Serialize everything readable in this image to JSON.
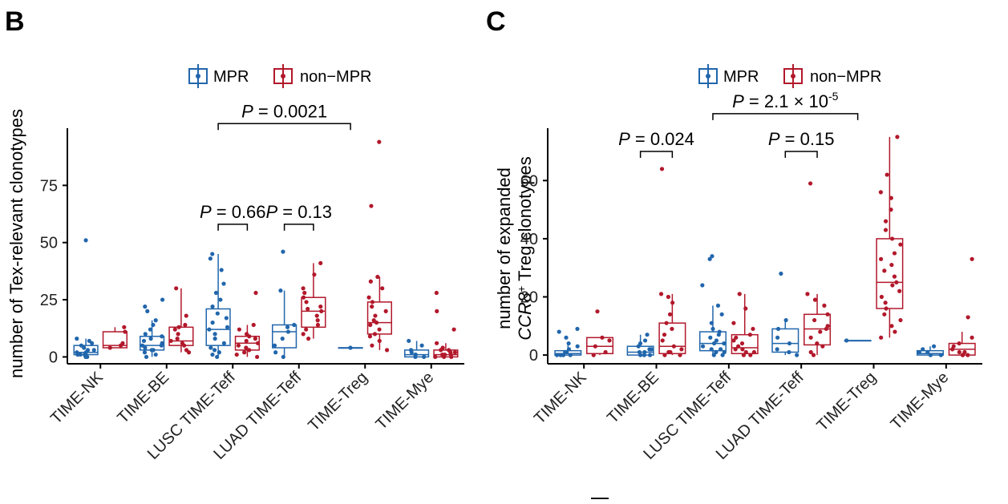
{
  "colors": {
    "mpr": "#2166ac",
    "non_mpr": "#b2182b",
    "axis": "#000000"
  },
  "legend": {
    "mpr": "MPR",
    "non_mpr": "non−MPR"
  },
  "chart_data": [
    {
      "id": "B",
      "panel_label": "B",
      "type": "box",
      "title": "",
      "xlabel": "",
      "ylabel": "number of Tex-relevant clonotypes",
      "ylim": [
        -3,
        100
      ],
      "yticks": [
        0,
        25,
        50,
        75
      ],
      "categories": [
        "TIME-NK",
        "TIME-BE",
        "LUSC TIME-Teff",
        "LUAD TIME-Teff",
        "TIME-Treg",
        "TIME-Mye"
      ],
      "series": [
        {
          "name": "MPR",
          "boxes": [
            {
              "q1": 1,
              "median": 2,
              "q3": 5,
              "whisker_low": 0,
              "whisker_high": 8,
              "points": [
                0,
                0,
                1,
                1,
                1,
                2,
                2,
                3,
                3,
                4,
                5,
                6,
                7,
                8,
                51
              ]
            },
            {
              "q1": 3,
              "median": 5,
              "q3": 9,
              "whisker_low": 0,
              "whisker_high": 16,
              "points": [
                0,
                1,
                2,
                3,
                3,
                4,
                5,
                5,
                6,
                7,
                8,
                9,
                10,
                12,
                14,
                16,
                20,
                22,
                25
              ]
            },
            {
              "q1": 5,
              "median": 12,
              "q3": 21,
              "whisker_low": 0,
              "whisker_high": 45,
              "points": [
                0,
                1,
                2,
                3,
                4,
                6,
                8,
                10,
                12,
                13,
                15,
                17,
                19,
                22,
                25,
                28,
                32,
                38,
                43,
                45
              ]
            },
            {
              "q1": 4,
              "median": 11,
              "q3": 14,
              "whisker_low": 0,
              "whisker_high": 29,
              "points": [
                0,
                2,
                5,
                8,
                11,
                13,
                14,
                29,
                46
              ]
            },
            {
              "q1": 4,
              "median": 4,
              "q3": 4,
              "whisker_low": 4,
              "whisker_high": 4,
              "points": [
                4
              ]
            },
            {
              "q1": 0,
              "median": 1,
              "q3": 3,
              "whisker_low": 0,
              "whisker_high": 7,
              "points": [
                0,
                0,
                1,
                1,
                2,
                3,
                5,
                7
              ]
            }
          ]
        },
        {
          "name": "non−MPR",
          "boxes": [
            {
              "q1": 4,
              "median": 5,
              "q3": 11,
              "whisker_low": 4,
              "whisker_high": 13,
              "points": [
                4,
                5,
                6,
                11,
                13
              ]
            },
            {
              "q1": 5,
              "median": 7,
              "q3": 13,
              "whisker_low": 2,
              "whisker_high": 30,
              "points": [
                2,
                3,
                5,
                6,
                7,
                8,
                10,
                12,
                13,
                14,
                18,
                30
              ]
            },
            {
              "q1": 3,
              "median": 6,
              "q3": 9,
              "whisker_low": 0,
              "whisker_high": 14,
              "points": [
                0,
                1,
                2,
                3,
                4,
                5,
                6,
                7,
                8,
                9,
                10,
                12,
                14,
                28
              ]
            },
            {
              "q1": 13,
              "median": 20,
              "q3": 26,
              "whisker_low": 8,
              "whisker_high": 41,
              "points": [
                8,
                10,
                12,
                14,
                16,
                18,
                20,
                21,
                22,
                24,
                26,
                28,
                30,
                36,
                41
              ]
            },
            {
              "q1": 10,
              "median": 15,
              "q3": 24,
              "whisker_low": 3,
              "whisker_high": 35,
              "points": [
                3,
                5,
                7,
                9,
                10,
                12,
                14,
                15,
                16,
                18,
                20,
                22,
                24,
                26,
                30,
                33,
                35,
                66,
                94
              ]
            },
            {
              "q1": 0,
              "median": 1,
              "q3": 3,
              "whisker_low": 0,
              "whisker_high": 6,
              "points": [
                0,
                0,
                0,
                1,
                1,
                1,
                2,
                2,
                3,
                3,
                4,
                6,
                12,
                20,
                28
              ]
            }
          ]
        }
      ],
      "annotations": [
        {
          "label": "P",
          "value": "= 0.66",
          "exp": "",
          "from_group": 2,
          "from_series": 0,
          "to_group": 2,
          "to_series": 1,
          "y": 58
        },
        {
          "label": "P",
          "value": "= 0.13",
          "exp": "",
          "from_group": 3,
          "from_series": 0,
          "to_group": 3,
          "to_series": 1,
          "y": 58
        },
        {
          "label": "P",
          "value": "= 0.0021",
          "exp": "",
          "from_group": 2,
          "from_series": 0,
          "to_group": 4,
          "to_series": 0,
          "y": 102
        }
      ]
    },
    {
      "id": "C",
      "panel_label": "C",
      "type": "box",
      "title": "",
      "xlabel": "",
      "ylabel_line1": "number of expanded",
      "ylabel_line2_italic": "CCR8",
      "ylabel_line2_sup": "+",
      "ylabel_line2_rest": " Treg clonotypes",
      "ylim": [
        -3,
        78
      ],
      "yticks": [
        0,
        20,
        40,
        60
      ],
      "categories": [
        "TIME-NK",
        "TIME-BE",
        "LUSC TIME-Teff",
        "LUAD TIME-Teff",
        "TIME-Treg",
        "TIME-Mye"
      ],
      "series": [
        {
          "name": "MPR",
          "boxes": [
            {
              "q1": 0,
              "median": 0.5,
              "q3": 1.5,
              "whisker_low": 0,
              "whisker_high": 4,
              "points": [
                0,
                0,
                0,
                0,
                1,
                1,
                2,
                3,
                4,
                6,
                8,
                9
              ]
            },
            {
              "q1": 0,
              "median": 1,
              "q3": 3,
              "whisker_low": 0,
              "whisker_high": 7,
              "points": [
                0,
                0,
                0,
                1,
                1,
                2,
                2,
                3,
                4,
                5,
                7
              ]
            },
            {
              "q1": 1.5,
              "median": 4,
              "q3": 8,
              "whisker_low": 0,
              "whisker_high": 17,
              "points": [
                0,
                0,
                1,
                1,
                2,
                2,
                3,
                4,
                4,
                5,
                6,
                7,
                8,
                9,
                11,
                14,
                17,
                24,
                33,
                34
              ]
            },
            {
              "q1": 1,
              "median": 4,
              "q3": 9,
              "whisker_low": 0,
              "whisker_high": 12,
              "points": [
                0,
                1,
                2,
                4,
                6,
                9,
                12,
                28
              ]
            },
            {
              "q1": 5,
              "median": 5,
              "q3": 5,
              "whisker_low": 5,
              "whisker_high": 5,
              "points": [
                5
              ]
            },
            {
              "q1": 0,
              "median": 0.5,
              "q3": 1.5,
              "whisker_low": 0,
              "whisker_high": 3,
              "points": [
                0,
                0,
                1,
                1,
                2,
                3
              ]
            }
          ]
        },
        {
          "name": "non−MPR",
          "boxes": [
            {
              "q1": 0.5,
              "median": 3,
              "q3": 6,
              "whisker_low": 0,
              "whisker_high": 6,
              "points": [
                0,
                1,
                3,
                5,
                6,
                15
              ]
            },
            {
              "q1": 0.5,
              "median": 3,
              "q3": 11,
              "whisker_low": 0,
              "whisker_high": 21,
              "points": [
                0,
                0,
                1,
                1,
                2,
                3,
                5,
                7,
                9,
                11,
                14,
                18,
                20,
                21,
                64
              ]
            },
            {
              "q1": 0.5,
              "median": 2.5,
              "q3": 7,
              "whisker_low": 0,
              "whisker_high": 21,
              "points": [
                0,
                0,
                1,
                1,
                2,
                2,
                3,
                4,
                5,
                6,
                7,
                9,
                11,
                16,
                21
              ]
            },
            {
              "q1": 3.5,
              "median": 9,
              "q3": 14,
              "whisker_low": 0,
              "whisker_high": 21,
              "points": [
                0,
                1,
                3,
                4,
                6,
                8,
                9,
                10,
                12,
                14,
                17,
                19,
                21,
                59
              ]
            },
            {
              "q1": 16,
              "median": 25,
              "q3": 40,
              "whisker_low": 6,
              "whisker_high": 75,
              "points": [
                6,
                8,
                10,
                12,
                14,
                16,
                18,
                20,
                22,
                24,
                25,
                27,
                29,
                31,
                33,
                35,
                38,
                40,
                43,
                46,
                50,
                54,
                56,
                62,
                75
              ]
            },
            {
              "q1": 0,
              "median": 2,
              "q3": 4,
              "whisker_low": 0,
              "whisker_high": 8,
              "points": [
                0,
                0,
                0,
                1,
                1,
                2,
                3,
                4,
                6,
                13,
                33
              ]
            }
          ]
        }
      ],
      "annotations": [
        {
          "label": "P",
          "value": "= 0.024",
          "exp": "",
          "from_group": 1,
          "from_series": 0,
          "to_group": 1,
          "to_series": 1,
          "y": 70
        },
        {
          "label": "P",
          "value": "= 0.15",
          "exp": "",
          "from_group": 3,
          "from_series": 0,
          "to_group": 3,
          "to_series": 1,
          "y": 70
        },
        {
          "label": "P",
          "value": "= 2.1 × 10",
          "exp": "-5",
          "from_group": 2,
          "from_series": 0,
          "to_group": 4,
          "to_series": 0,
          "y": 83
        }
      ]
    }
  ]
}
